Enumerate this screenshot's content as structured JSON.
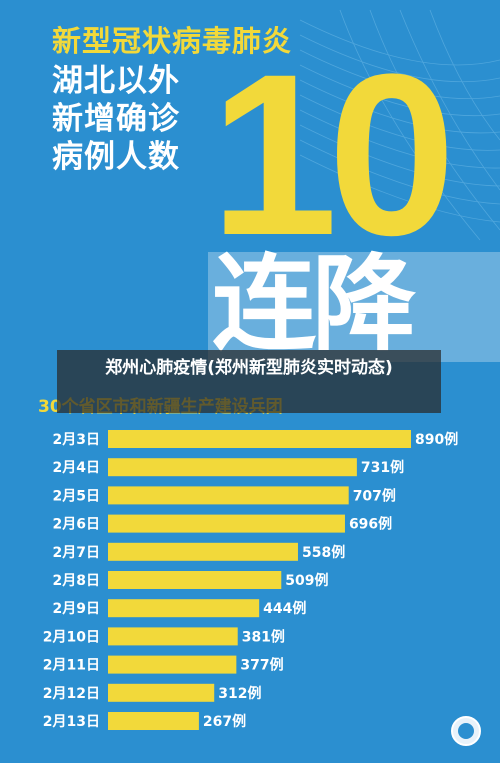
{
  "poster": {
    "title_line1": "新型冠状病毒肺炎",
    "title_line2": "湖北以外",
    "title_line3": "新增确诊",
    "title_line4": "病例人数",
    "streak_number": "10",
    "streak_text": "连降",
    "subtitle": "30个省区市和新疆生产建设兵团",
    "overlay_caption": "郑州心肺疫情(郑州新型肺炎实时动态)",
    "colors": {
      "background": "#2b8fd0",
      "accent": "#f2d93a",
      "bar": "#f2d93a",
      "text": "#ffffff"
    }
  },
  "chart_data": {
    "type": "bar",
    "orientation": "horizontal",
    "categories": [
      "2月3日",
      "2月4日",
      "2月5日",
      "2月6日",
      "2月7日",
      "2月8日",
      "2月9日",
      "2月10日",
      "2月11日",
      "2月12日",
      "2月13日"
    ],
    "values": [
      890,
      731,
      707,
      696,
      558,
      509,
      444,
      381,
      377,
      312,
      267
    ],
    "value_labels": [
      "890例",
      "731例",
      "707例",
      "696例",
      "558例",
      "509例",
      "444例",
      "381例",
      "377例",
      "312例",
      "267例"
    ],
    "title": "新型冠状病毒肺炎湖北以外新增确诊病例人数",
    "subtitle": "30个省区市和新疆生产建设兵团",
    "xlim": [
      0,
      890
    ],
    "grid": false,
    "legend": "none"
  }
}
